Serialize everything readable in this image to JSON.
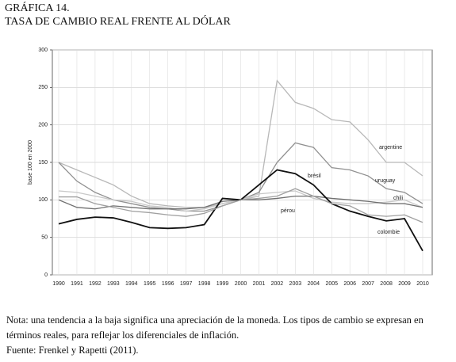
{
  "chart_data": {
    "type": "line",
    "title": "GRÁFICA 14.",
    "subtitle": "TASA DE CAMBIO REAL FRENTE AL DÓLAR",
    "y_label": "base 100 en 2000",
    "categories": [
      "1990",
      "1991",
      "1992",
      "1993",
      "1994",
      "1995",
      "1996",
      "1997",
      "1998",
      "1999",
      "2000",
      "2001",
      "2002",
      "2003",
      "2004",
      "2005",
      "2006",
      "2007",
      "2008",
      "2009",
      "2010"
    ],
    "series": [
      {
        "name": "argentine",
        "color": "#b8b8b8",
        "values": [
          150,
          140,
          130,
          120,
          105,
          95,
          92,
          90,
          90,
          95,
          100,
          105,
          259,
          230,
          222,
          207,
          204,
          180,
          150,
          150,
          132
        ]
      },
      {
        "name": "uruguay",
        "color": "#909090",
        "values": [
          150,
          125,
          110,
          100,
          95,
          90,
          88,
          85,
          85,
          92,
          100,
          110,
          150,
          176,
          170,
          143,
          140,
          132,
          115,
          110,
          95
        ]
      },
      {
        "name": "chili",
        "color": "#c8c8c8",
        "values": [
          112,
          110,
          105,
          100,
          98,
          92,
          90,
          85,
          88,
          95,
          100,
          108,
          110,
          112,
          102,
          97,
          95,
          95,
          97,
          100,
          90
        ]
      },
      {
        "name": "pérou",
        "color": "#707070",
        "values": [
          100,
          90,
          88,
          92,
          90,
          88,
          88,
          88,
          90,
          98,
          100,
          100,
          102,
          105,
          105,
          102,
          100,
          98,
          95,
          95,
          90
        ]
      },
      {
        "name": "brésil",
        "color": "#111111",
        "values": [
          68,
          74,
          77,
          76,
          70,
          63,
          62,
          63,
          67,
          102,
          100,
          120,
          140,
          135,
          120,
          95,
          85,
          78,
          72,
          75,
          32
        ]
      },
      {
        "name": "colombie",
        "color": "#a0a0a0",
        "values": [
          104,
          104,
          95,
          90,
          85,
          83,
          80,
          78,
          82,
          92,
          100,
          102,
          105,
          115,
          105,
          95,
          92,
          80,
          78,
          80,
          70
        ]
      }
    ],
    "ylim": [
      0,
      300
    ],
    "yticks": [
      0,
      50,
      100,
      150,
      200,
      250,
      300
    ],
    "grid": true,
    "note": "Nota: una tendencia a la baja significa una apreciación de la moneda. Los tipos de cambio se expresan en términos reales, para reflejar los diferenciales de inflación.",
    "source": "Fuente: Frenkel y Rapetti (2011)."
  }
}
